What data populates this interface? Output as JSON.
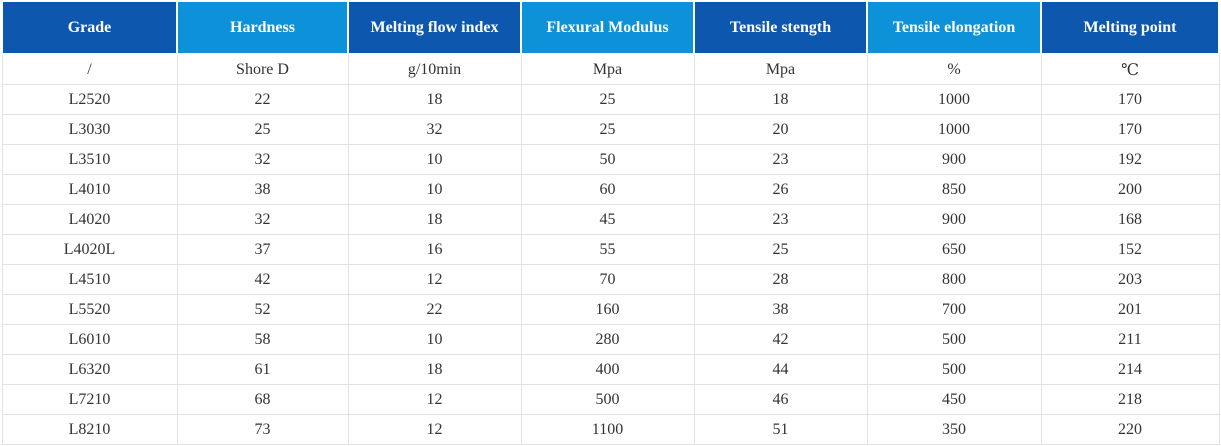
{
  "chart_data": {
    "type": "table",
    "title": "",
    "columns": [
      "Grade",
      "Hardness",
      "Melting flow index",
      "Flexural Modulus",
      "Tensile stength",
      "Tensile elongation",
      "Melting point"
    ],
    "units": [
      "/",
      "Shore D",
      "g/10min",
      "Mpa",
      "Mpa",
      "%",
      "℃"
    ],
    "rows": [
      [
        "L2520",
        "22",
        "18",
        "25",
        "18",
        "1000",
        "170"
      ],
      [
        "L3030",
        "25",
        "32",
        "25",
        "20",
        "1000",
        "170"
      ],
      [
        "L3510",
        "32",
        "10",
        "50",
        "23",
        "900",
        "192"
      ],
      [
        "L4010",
        "38",
        "10",
        "60",
        "26",
        "850",
        "200"
      ],
      [
        "L4020",
        "32",
        "18",
        "45",
        "23",
        "900",
        "168"
      ],
      [
        "L4020L",
        "37",
        "16",
        "55",
        "25",
        "650",
        "152"
      ],
      [
        "L4510",
        "42",
        "12",
        "70",
        "28",
        "800",
        "203"
      ],
      [
        "L5520",
        "52",
        "22",
        "160",
        "38",
        "700",
        "201"
      ],
      [
        "L6010",
        "58",
        "10",
        "280",
        "42",
        "500",
        "211"
      ],
      [
        "L6320",
        "61",
        "18",
        "400",
        "44",
        "500",
        "214"
      ],
      [
        "L7210",
        "68",
        "12",
        "500",
        "46",
        "450",
        "218"
      ],
      [
        "L8210",
        "73",
        "12",
        "1100",
        "51",
        "350",
        "220"
      ]
    ]
  },
  "theme": {
    "header_shades": [
      "dark",
      "light",
      "dark",
      "light",
      "dark",
      "light",
      "dark"
    ],
    "header_dark": "#0d57ae",
    "header_light": "#0d91d8",
    "header_text": "#ffffff",
    "body_text": "#333333",
    "grid_line": "#e2e2e2",
    "background": "#ffffff"
  }
}
